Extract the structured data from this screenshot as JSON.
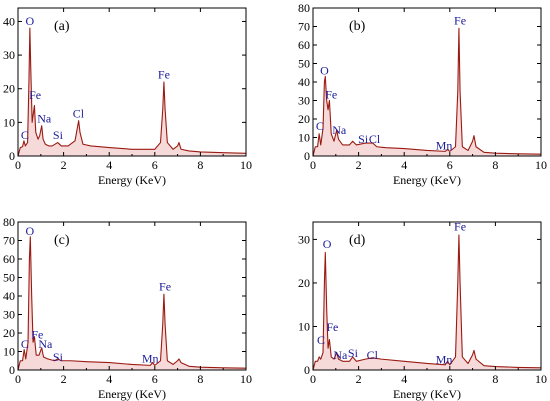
{
  "chart_data": [
    {
      "type": "line",
      "panel_label": "(a)",
      "xlabel": "Energy (KeV)",
      "ylabel": "",
      "xlim": [
        0,
        10
      ],
      "ylim": [
        0,
        44
      ],
      "xticks": [
        0,
        2,
        4,
        6,
        8,
        10
      ],
      "yticks": [
        0,
        10,
        20,
        30,
        40
      ],
      "grid": false,
      "series": [
        {
          "x": [
            0,
            0.1,
            0.2,
            0.26,
            0.32,
            0.42,
            0.48,
            0.52,
            0.56,
            0.62,
            0.68,
            0.72,
            0.78,
            0.88,
            0.95,
            1.04,
            1.1,
            1.2,
            1.35,
            1.5,
            1.74,
            1.9,
            2.2,
            2.5,
            2.62,
            2.66,
            2.72,
            2.85,
            3.2,
            4,
            5,
            6,
            6.25,
            6.35,
            6.4,
            6.45,
            6.55,
            6.8,
            7.0,
            7.06,
            7.15,
            7.5,
            8,
            9,
            10
          ],
          "y": [
            0,
            2.5,
            2.8,
            4.5,
            3,
            4,
            22,
            38,
            26,
            10,
            13,
            15,
            7,
            5,
            6,
            9,
            5,
            3.5,
            3,
            3,
            4,
            3,
            3,
            4.5,
            9,
            10.5,
            7,
            3.5,
            3,
            2.5,
            2,
            2,
            4,
            14,
            22,
            14,
            4,
            2,
            3,
            4,
            2,
            1.5,
            1.2,
            1,
            0.8
          ]
        }
      ],
      "annotations": [
        {
          "text": "O",
          "x": 0.52,
          "y": 39
        },
        {
          "text": "Fe",
          "x": 0.75,
          "y": 17
        },
        {
          "text": "C",
          "x": 0.3,
          "y": 5
        },
        {
          "text": "Na",
          "x": 1.15,
          "y": 10
        },
        {
          "text": "Si",
          "x": 1.75,
          "y": 5
        },
        {
          "text": "Cl",
          "x": 2.65,
          "y": 11.5
        },
        {
          "text": "Fe",
          "x": 6.4,
          "y": 23
        }
      ]
    },
    {
      "type": "line",
      "panel_label": "(b)",
      "xlabel": "Energy (KeV)",
      "ylabel": "",
      "xlim": [
        0,
        10
      ],
      "ylim": [
        0,
        80
      ],
      "xticks": [
        0,
        2,
        4,
        6,
        8,
        10
      ],
      "yticks": [
        0,
        10,
        20,
        30,
        40,
        50,
        60,
        70,
        80
      ],
      "grid": false,
      "series": [
        {
          "x": [
            0,
            0.1,
            0.2,
            0.27,
            0.34,
            0.44,
            0.5,
            0.54,
            0.6,
            0.66,
            0.72,
            0.8,
            0.92,
            1.04,
            1.12,
            1.3,
            1.6,
            1.74,
            1.9,
            2.3,
            2.62,
            2.8,
            3.2,
            4,
            5,
            5.8,
            5.9,
            6.0,
            6.25,
            6.35,
            6.4,
            6.45,
            6.55,
            6.8,
            7.0,
            7.06,
            7.15,
            7.5,
            8,
            9,
            10
          ],
          "y": [
            0,
            5,
            5,
            12,
            6,
            15,
            40,
            43,
            30,
            25,
            30,
            12,
            8,
            14,
            9,
            6,
            6,
            8,
            6,
            7,
            7,
            5,
            4.5,
            4,
            3,
            2.5,
            3.5,
            2.5,
            5,
            35,
            69,
            35,
            5,
            3,
            8,
            11,
            5,
            2,
            1.5,
            1.2,
            1
          ]
        }
      ],
      "annotations": [
        {
          "text": "O",
          "x": 0.5,
          "y": 44
        },
        {
          "text": "Fe",
          "x": 0.8,
          "y": 31
        },
        {
          "text": "C",
          "x": 0.3,
          "y": 14
        },
        {
          "text": "Na",
          "x": 1.15,
          "y": 12
        },
        {
          "text": "Si",
          "x": 2.2,
          "y": 7
        },
        {
          "text": "Cl",
          "x": 2.7,
          "y": 7
        },
        {
          "text": "Mn",
          "x": 5.75,
          "y": 3.5
        },
        {
          "text": "Fe",
          "x": 6.45,
          "y": 71
        }
      ]
    },
    {
      "type": "line",
      "panel_label": "(c)",
      "xlabel": "Energy (KeV)",
      "ylabel": "",
      "xlim": [
        0,
        10
      ],
      "ylim": [
        0,
        80
      ],
      "xticks": [
        0,
        2,
        4,
        6,
        8,
        10
      ],
      "yticks": [
        0,
        10,
        20,
        30,
        40,
        50,
        60,
        70,
        80
      ],
      "grid": false,
      "series": [
        {
          "x": [
            0,
            0.1,
            0.2,
            0.27,
            0.34,
            0.44,
            0.5,
            0.54,
            0.6,
            0.66,
            0.72,
            0.8,
            0.92,
            1.04,
            1.12,
            1.3,
            1.6,
            1.74,
            1.9,
            2.3,
            3,
            4,
            5,
            5.8,
            5.9,
            6.0,
            6.25,
            6.35,
            6.4,
            6.45,
            6.55,
            6.8,
            7.0,
            7.06,
            7.15,
            7.5,
            8,
            9,
            10
          ],
          "y": [
            0,
            5,
            5,
            11,
            6,
            15,
            60,
            72,
            40,
            15,
            18,
            8,
            8,
            12,
            7,
            6,
            5,
            6,
            5,
            5,
            4.5,
            4,
            3,
            2.5,
            4,
            2.5,
            5,
            25,
            41,
            25,
            5,
            3,
            5,
            6,
            4,
            2,
            1.5,
            1.2,
            1
          ]
        }
      ],
      "annotations": [
        {
          "text": "O",
          "x": 0.52,
          "y": 73
        },
        {
          "text": "Fe",
          "x": 0.85,
          "y": 17
        },
        {
          "text": "C",
          "x": 0.3,
          "y": 12
        },
        {
          "text": "Na",
          "x": 1.2,
          "y": 12
        },
        {
          "text": "Si",
          "x": 1.75,
          "y": 5
        },
        {
          "text": "Mn",
          "x": 5.8,
          "y": 4
        },
        {
          "text": "Fe",
          "x": 6.45,
          "y": 43
        }
      ]
    },
    {
      "type": "line",
      "panel_label": "(d)",
      "xlabel": "Energy (KeV)",
      "ylabel": "",
      "xlim": [
        0,
        10
      ],
      "ylim": [
        0,
        34
      ],
      "xticks": [
        0,
        2,
        4,
        6,
        8,
        10
      ],
      "yticks": [
        0,
        10,
        20,
        30
      ],
      "grid": false,
      "series": [
        {
          "x": [
            0,
            0.1,
            0.2,
            0.27,
            0.34,
            0.44,
            0.5,
            0.54,
            0.6,
            0.66,
            0.72,
            0.8,
            0.92,
            1.04,
            1.12,
            1.3,
            1.6,
            1.74,
            1.9,
            2.3,
            2.6,
            3,
            4,
            5,
            5.8,
            5.9,
            6.0,
            6.25,
            6.35,
            6.4,
            6.45,
            6.55,
            6.8,
            7.0,
            7.06,
            7.15,
            7.5,
            8,
            9,
            10
          ],
          "y": [
            0,
            2,
            2,
            3,
            2.5,
            4,
            20,
            27,
            14,
            5,
            7,
            3,
            2.5,
            4,
            2.5,
            2,
            2,
            3,
            2,
            2.5,
            2.8,
            2.5,
            2,
            1.5,
            1.2,
            2,
            1.2,
            3,
            20,
            31,
            20,
            3,
            1.5,
            3.5,
            4.5,
            2.5,
            1,
            0.8,
            0.6,
            0.5
          ]
        }
      ],
      "annotations": [
        {
          "text": "O",
          "x": 0.62,
          "y": 28
        },
        {
          "text": "Fe",
          "x": 0.85,
          "y": 9
        },
        {
          "text": "C",
          "x": 0.35,
          "y": 6
        },
        {
          "text": "Na",
          "x": 1.2,
          "y": 2.5
        },
        {
          "text": "Si",
          "x": 1.75,
          "y": 3
        },
        {
          "text": "Cl",
          "x": 2.6,
          "y": 2.5
        },
        {
          "text": "Mn",
          "x": 5.75,
          "y": 1.5
        },
        {
          "text": "Fe",
          "x": 6.45,
          "y": 32
        }
      ]
    }
  ],
  "colors": {
    "line": "#9a1a12",
    "fill": "#f6dada",
    "annotation": "#1a1a9a",
    "axis": "#000000"
  }
}
